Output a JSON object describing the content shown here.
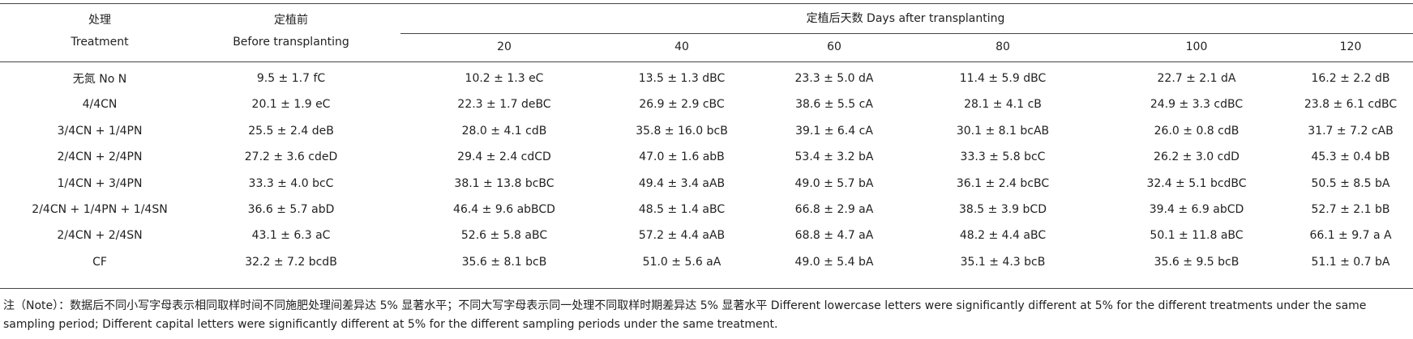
{
  "table": {
    "header": {
      "treatment": "处理",
      "treatment_en": "Treatment",
      "before": "定植前",
      "before_en": "Before transplanting",
      "after": "定植后天数 Days after transplanting",
      "days": [
        "20",
        "40",
        "60",
        "80",
        "100",
        "120"
      ]
    },
    "rows": [
      [
        "无氮 No N",
        "9.5 ± 1.7 fC",
        "10.2 ± 1.3 eC",
        "13.5 ± 1.3 dBC",
        "23.3 ± 5.0 dA",
        "11.4 ± 5.9 dBC",
        "22.7 ± 2.1 dA",
        "16.2 ± 2.2 dB"
      ],
      [
        "4/4CN",
        "20.1 ± 1.9 eC",
        "22.3 ± 1.7 deBC",
        "26.9 ± 2.9 cBC",
        "38.6 ± 5.5 cA",
        "28.1 ± 4.1 cB",
        "24.9 ± 3.3 cdBC",
        "23.8 ± 6.1 cdBC"
      ],
      [
        "3/4CN + 1/4PN",
        "25.5 ± 2.4 deB",
        "28.0 ± 4.1 cdB",
        "35.8 ± 16.0 bcB",
        "39.1 ± 6.4 cA",
        "30.1 ± 8.1 bcAB",
        "26.0 ± 0.8 cdB",
        "31.7 ± 7.2 cAB"
      ],
      [
        "2/4CN + 2/4PN",
        "27.2 ± 3.6 cdeD",
        "29.4 ± 2.4 cdCD",
        "47.0 ± 1.6 abB",
        "53.4 ± 3.2 bA",
        "33.3 ± 5.8 bcC",
        "26.2 ± 3.0 cdD",
        "45.3 ± 0.4 bB"
      ],
      [
        "1/4CN + 3/4PN",
        "33.3 ± 4.0 bcC",
        "38.1 ± 13.8 bcBC",
        "49.4 ± 3.4 aAB",
        "49.0 ± 5.7 bA",
        "36.1 ± 2.4 bcBC",
        "32.4 ± 5.1 bcdBC",
        "50.5 ± 8.5 bA"
      ],
      [
        "2/4CN + 1/4PN + 1/4SN",
        "36.6 ± 5.7 abD",
        "46.4 ± 9.6 abBCD",
        "48.5 ± 1.4 aBC",
        "66.8 ± 2.9 aA",
        "38.5 ± 3.9 bCD",
        "39.4 ± 6.9 abCD",
        "52.7 ± 2.1 bB"
      ],
      [
        "2/4CN + 2/4SN",
        "43.1 ± 6.3 aC",
        "52.6 ± 5.8 aBC",
        "57.2 ± 4.4 aAB",
        "68.8 ± 4.7 aA",
        "48.2 ± 4.4 aBC",
        "50.1 ± 11.8 aBC",
        "66.1 ± 9.7 a A"
      ],
      [
        "CF",
        "32.2 ± 7.2 bcdB",
        "35.6 ± 8.1 bcB",
        "51.0 ± 5.6 aA",
        "49.0 ± 5.4 bA",
        "35.1 ± 4.3 bcB",
        "35.6 ± 9.5 bcB",
        "51.1 ± 0.7 bA"
      ]
    ],
    "note": "注（Note）：数据后不同小写字母表示相同取样时间不同施肥处理间差异达 5% 显著水平；不同大写字母表示同一处理不同取样时期差异达 5% 显著水平 Different lowercase letters were significantly different at 5% for the different treatments under the same sampling period; Different capital letters were significantly different at 5% for the different sampling periods under the same treatment."
  }
}
